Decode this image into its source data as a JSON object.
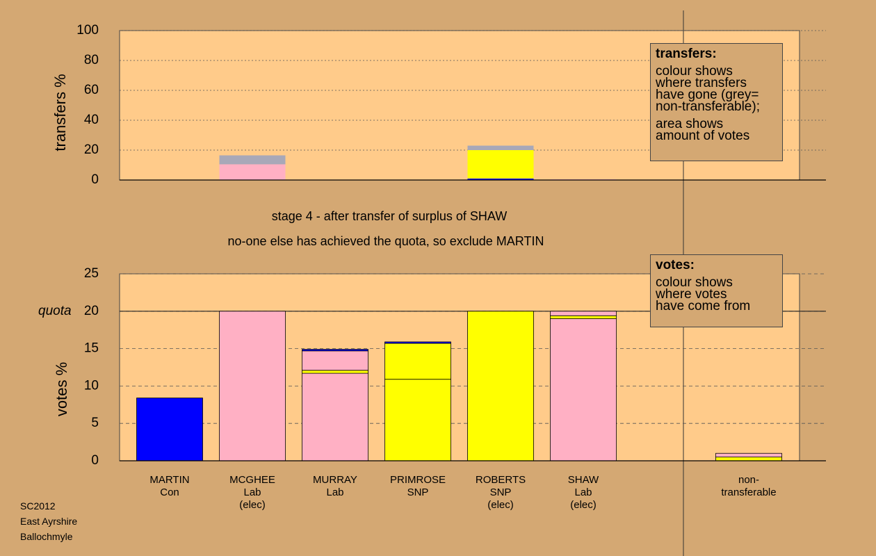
{
  "chart_data": [
    {
      "type": "bar",
      "stacked": true,
      "ylabel": "transfers %",
      "ylim": [
        0,
        100
      ],
      "yticks": [
        0,
        20,
        40,
        60,
        80,
        100
      ],
      "grid": true,
      "series": [
        {
          "color": "#ffb0c4",
          "values": [
            null,
            10.5,
            null,
            null,
            null,
            0.5,
            null,
            null
          ]
        },
        {
          "color": "#0000ff",
          "values": [
            null,
            null,
            null,
            null,
            1,
            null,
            null,
            null
          ]
        },
        {
          "color": "#ffff00",
          "values": [
            null,
            null,
            null,
            null,
            19,
            null,
            null,
            null
          ]
        },
        {
          "color": "#a8a8b8",
          "values": [
            null,
            6,
            null,
            null,
            3,
            null,
            null,
            null
          ]
        }
      ]
    },
    {
      "type": "bar",
      "stacked": true,
      "title": "stage 4 - after transfer of surplus of SHAW",
      "subtitle": "no-one else has achieved the quota, so exclude MARTIN",
      "ylabel": "votes %",
      "ylim": [
        0,
        25
      ],
      "yticks": [
        0,
        5,
        10,
        15,
        20,
        25
      ],
      "grid": true,
      "quota": {
        "value": 20,
        "label": "quota"
      },
      "categories": [
        "MARTIN\nCon",
        "MCGHEE\nLab\n(elec)",
        "MURRAY\nLab",
        "PRIMROSE\nSNP",
        "ROBERTS\nSNP\n(elec)",
        "SHAW\nLab\n(elec)",
        null,
        "non-\ntransferable"
      ],
      "series": [
        {
          "color": "#0000ff",
          "values": [
            8.4,
            null,
            null,
            null,
            null,
            null,
            null,
            null
          ]
        },
        {
          "color": "#ffb0c4",
          "values": [
            null,
            20,
            11.7,
            null,
            null,
            19.0,
            null,
            null
          ]
        },
        {
          "color": "#ffff00",
          "values": [
            null,
            null,
            null,
            10.9,
            20,
            null,
            null,
            0.5
          ]
        },
        {
          "color": "#ffff00",
          "values": [
            null,
            null,
            0.4,
            4.8,
            null,
            0.4,
            null,
            null
          ]
        },
        {
          "color": "#ffb0c4",
          "values": [
            null,
            null,
            2.6,
            null,
            null,
            0.6,
            null,
            0.5
          ]
        },
        {
          "color": "#0000ff",
          "values": [
            null,
            null,
            0.2,
            0.2,
            null,
            null,
            null,
            null
          ]
        }
      ]
    }
  ],
  "transfers_box": {
    "heading": "transfers:",
    "paragraphs": [
      "colour shows\nwhere transfers\nhave gone (grey=\nnon-transferable);",
      "area shows\namount of votes"
    ]
  },
  "votes_box": {
    "heading": "votes:",
    "paragraphs": [
      "colour shows\nwhere votes\nhave come from"
    ]
  },
  "footer": [
    "SC2012",
    "East Ayrshire",
    "Ballochmyle"
  ]
}
